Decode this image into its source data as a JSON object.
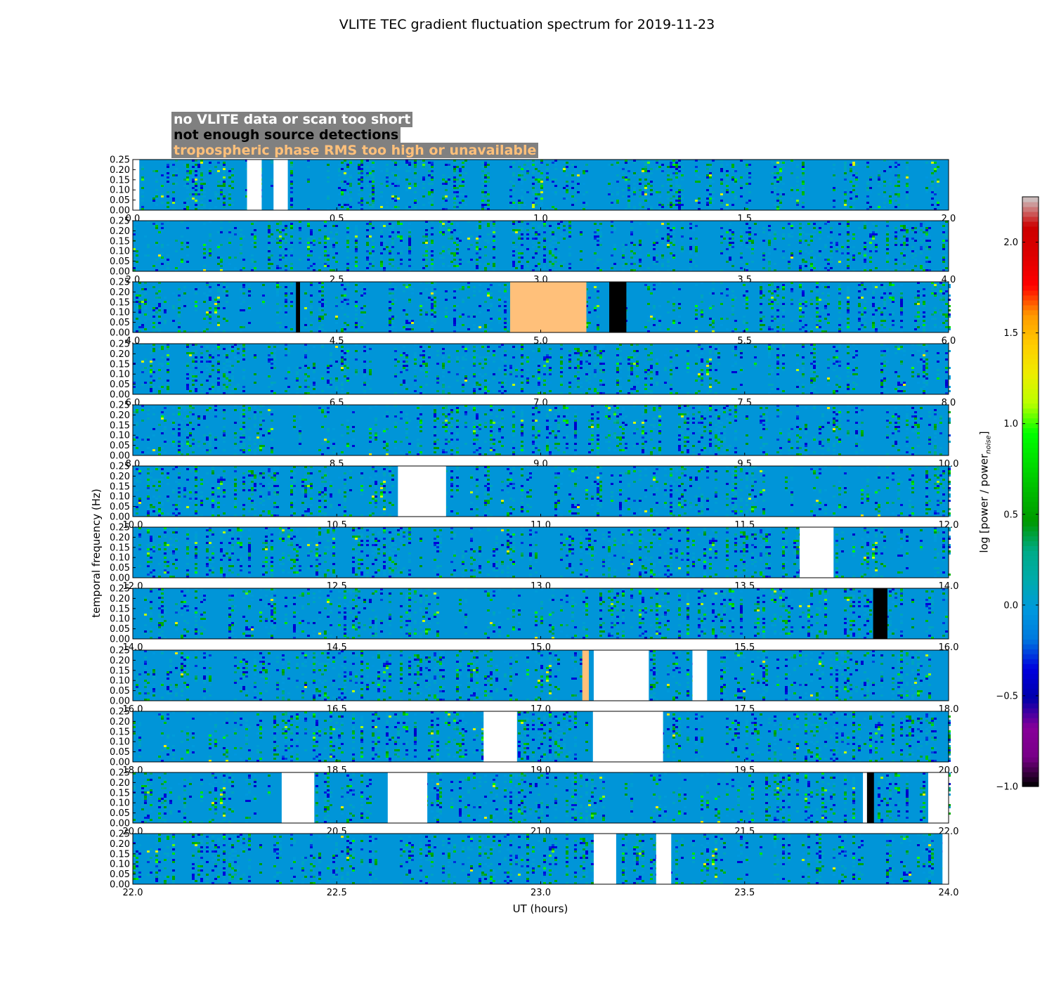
{
  "title": "VLITE TEC gradient fluctuation spectrum for 2019-11-23",
  "legend": {
    "entries": [
      {
        "label": "no VLITE data or scan too short",
        "text_color": "#ffffff",
        "box_color": "#808080"
      },
      {
        "label": "not enough source detections",
        "text_color": "#000000",
        "box_color": "#808080"
      },
      {
        "label": "tropospheric phase RMS too high or unavailable",
        "text_color": "#ffc07a",
        "box_color": "#808080"
      }
    ]
  },
  "colors": {
    "no_data": "#ffffff",
    "few_detections": "#000000",
    "rms_high": "#ffc07a",
    "background": "#0095d8"
  },
  "chart_data": {
    "type": "heatmap",
    "xlabel": "UT (hours)",
    "ylabel": "temporal frequency (Hz)",
    "colorbar": {
      "label_main": "log [power / power",
      "label_sub": "noise",
      "label_close": "]",
      "range": [
        -1.0,
        2.25
      ],
      "ticks": [
        -1.0,
        -0.5,
        0.0,
        0.5,
        1.0,
        1.5,
        2.0
      ],
      "tick_labels": [
        "−1.0",
        "−0.5",
        "0.0",
        "0.5",
        "1.0",
        "1.5",
        "2.0"
      ],
      "colormap": "nipy_spectral"
    },
    "y_range": [
      0.0,
      0.25
    ],
    "y_ticks": [
      "0.00",
      "0.05",
      "0.10",
      "0.15",
      "0.20",
      "0.25"
    ],
    "panels": [
      {
        "x_range": [
          0.0,
          2.0
        ],
        "x_ticks": [
          "0.0",
          "0.5",
          "1.0",
          "1.5",
          "2.0"
        ],
        "no_data": [
          [
            0.0,
            0.016
          ],
          [
            0.28,
            0.316
          ],
          [
            0.345,
            0.38
          ]
        ],
        "few_detections": [],
        "rms_high": []
      },
      {
        "x_range": [
          2.0,
          4.0
        ],
        "x_ticks": [
          "2.0",
          "2.5",
          "3.0",
          "3.5",
          "4.0"
        ],
        "no_data": [],
        "few_detections": [],
        "rms_high": []
      },
      {
        "x_range": [
          4.0,
          6.0
        ],
        "x_ticks": [
          "4.0",
          "4.5",
          "5.0",
          "5.5",
          "6.0"
        ],
        "no_data": [],
        "few_detections": [
          [
            4.4,
            4.41
          ],
          [
            5.168,
            5.21
          ]
        ],
        "rms_high": [
          [
            4.925,
            5.112
          ]
        ]
      },
      {
        "x_range": [
          6.0,
          8.0
        ],
        "x_ticks": [
          "6.0",
          "6.5",
          "7.0",
          "7.5",
          "8.0"
        ],
        "no_data": [],
        "few_detections": [],
        "rms_high": []
      },
      {
        "x_range": [
          8.0,
          10.0
        ],
        "x_ticks": [
          "8.0",
          "8.5",
          "9.0",
          "9.5",
          "10.0"
        ],
        "no_data": [],
        "few_detections": [],
        "rms_high": []
      },
      {
        "x_range": [
          10.0,
          12.0
        ],
        "x_ticks": [
          "10.0",
          "10.5",
          "11.0",
          "11.5",
          "12.0"
        ],
        "no_data": [
          [
            10.65,
            10.768
          ]
        ],
        "few_detections": [],
        "rms_high": []
      },
      {
        "x_range": [
          12.0,
          14.0
        ],
        "x_ticks": [
          "12.0",
          "12.5",
          "13.0",
          "13.5",
          "14.0"
        ],
        "no_data": [
          [
            13.635,
            13.718
          ]
        ],
        "few_detections": [],
        "rms_high": []
      },
      {
        "x_range": [
          14.0,
          16.0
        ],
        "x_ticks": [
          "14.0",
          "14.5",
          "15.0",
          "15.5",
          "16.0"
        ],
        "no_data": [],
        "few_detections": [
          [
            15.815,
            15.85
          ]
        ],
        "rms_high": []
      },
      {
        "x_range": [
          16.0,
          18.0
        ],
        "x_ticks": [
          "16.0",
          "16.5",
          "17.0",
          "17.5",
          "18.0"
        ],
        "no_data": [
          [
            17.13,
            17.265
          ],
          [
            17.372,
            17.408
          ]
        ],
        "few_detections": [],
        "rms_high": [
          [
            17.102,
            17.118
          ]
        ]
      },
      {
        "x_range": [
          18.0,
          20.0
        ],
        "x_ticks": [
          "18.0",
          "18.5",
          "19.0",
          "19.5",
          "20.0"
        ],
        "no_data": [
          [
            18.86,
            18.942
          ],
          [
            19.128,
            19.3
          ]
        ],
        "few_detections": [],
        "rms_high": []
      },
      {
        "x_range": [
          20.0,
          22.0
        ],
        "x_ticks": [
          "20.0",
          "20.5",
          "21.0",
          "21.5",
          "22.0"
        ],
        "no_data": [
          [
            20.365,
            20.445
          ],
          [
            20.625,
            20.722
          ],
          [
            21.79,
            21.8
          ],
          [
            21.95,
            22.0
          ]
        ],
        "few_detections": [
          [
            21.8,
            21.817
          ]
        ],
        "rms_high": []
      },
      {
        "x_range": [
          22.0,
          24.0
        ],
        "x_ticks": [
          "22.0",
          "22.5",
          "23.0",
          "23.5",
          "24.0"
        ],
        "no_data": [
          [
            23.13,
            23.185
          ],
          [
            23.283,
            23.32
          ],
          [
            23.985,
            24.0
          ]
        ],
        "few_detections": [],
        "rms_high": []
      }
    ]
  }
}
